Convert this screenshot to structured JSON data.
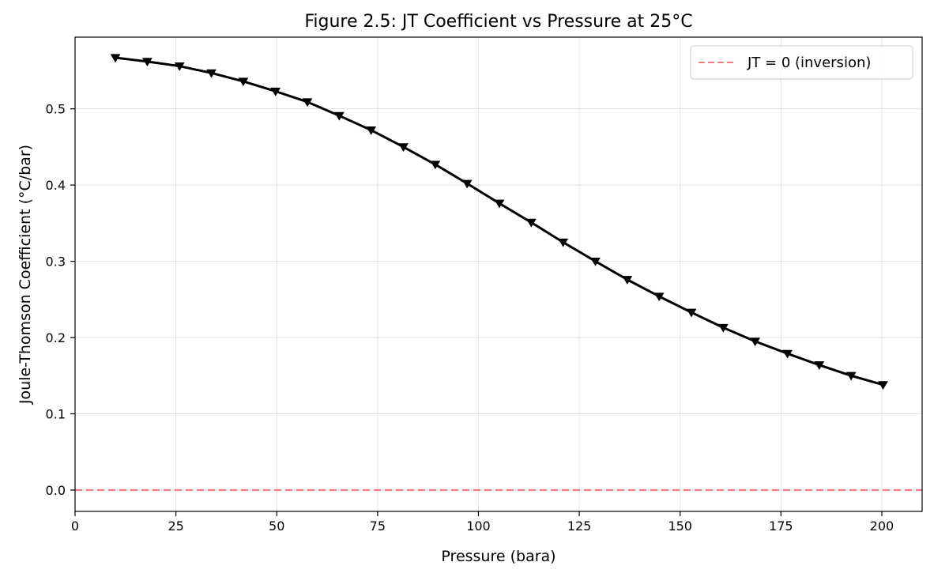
{
  "chart_data": {
    "type": "line",
    "title": "Figure 2.5: JT Coefficient vs Pressure at 25°C",
    "xlabel": "Pressure (bara)",
    "ylabel": "Joule-Thomson Coefficient (°C/bar)",
    "xlim": [
      0,
      210
    ],
    "ylim": [
      -0.028,
      0.594
    ],
    "xticks": [
      0,
      25,
      50,
      75,
      100,
      125,
      150,
      175,
      200
    ],
    "xtick_labels": [
      "0",
      "25",
      "50",
      "75",
      "100",
      "125",
      "150",
      "175",
      "200"
    ],
    "yticks": [
      0.0,
      0.1,
      0.2,
      0.3,
      0.4,
      0.5
    ],
    "ytick_labels": [
      "0.0",
      "0.1",
      "0.2",
      "0.3",
      "0.4",
      "0.5"
    ],
    "grid": true,
    "legend_position": "top-right",
    "series": [
      {
        "color": "#000000",
        "marker": "triangle-down",
        "x": [
          10,
          17.9,
          25.9,
          33.8,
          41.7,
          49.7,
          57.6,
          65.5,
          73.4,
          81.4,
          89.3,
          97.2,
          105.2,
          113.1,
          121.0,
          129.0,
          136.9,
          144.8,
          152.8,
          160.7,
          168.6,
          176.6,
          184.5,
          192.4,
          200.3
        ],
        "y": [
          0.567,
          0.562,
          0.556,
          0.547,
          0.536,
          0.523,
          0.509,
          0.491,
          0.472,
          0.45,
          0.427,
          0.402,
          0.376,
          0.351,
          0.325,
          0.3,
          0.276,
          0.254,
          0.233,
          0.213,
          0.195,
          0.179,
          0.164,
          0.15,
          0.138
        ]
      }
    ],
    "reference_lines": [
      {
        "name": "JT = 0 (inversion)",
        "y": 0,
        "color": "#f08080",
        "style": "dashed"
      }
    ]
  }
}
